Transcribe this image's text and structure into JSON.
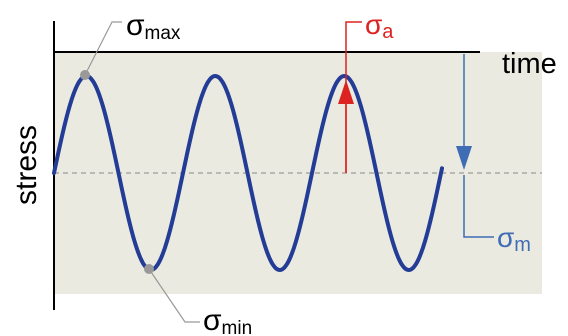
{
  "diagram": {
    "axis_labels": {
      "x": "time",
      "y": "stress"
    },
    "annotations": {
      "sigma_max": {
        "symbol": "σ",
        "subscript": "max"
      },
      "sigma_min": {
        "symbol": "σ",
        "subscript": "min"
      },
      "sigma_a": {
        "symbol": "σ",
        "subscript": "a"
      },
      "sigma_m": {
        "symbol": "σ",
        "subscript": "m"
      }
    },
    "colors": {
      "background_band": "#ebeae0",
      "wave": "#233c96",
      "amplitude": "#dd2222",
      "mean": "#3e6db5",
      "marker": "#999999",
      "axis": "#000000"
    }
  }
}
